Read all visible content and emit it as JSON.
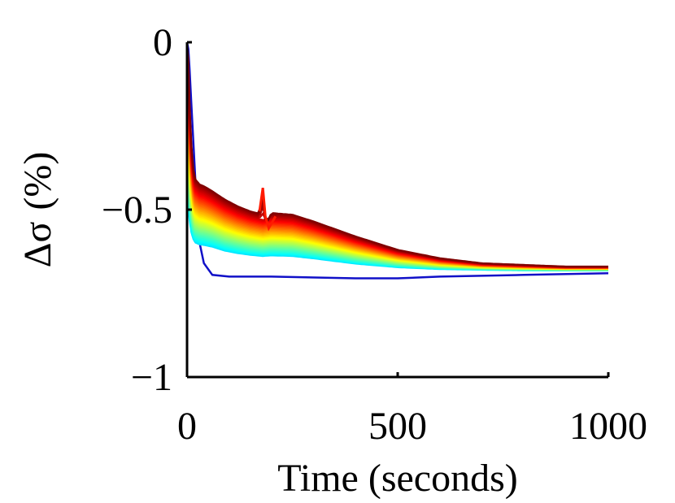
{
  "chart_data": {
    "type": "line",
    "xlabel": "Time (seconds)",
    "ylabel_symbol": "Δσ",
    "ylabel_unit": "(%)",
    "xlim": [
      0,
      1000
    ],
    "ylim": [
      -1,
      0
    ],
    "x_ticks": [
      {
        "value": 0,
        "label": "0"
      },
      {
        "value": 500,
        "label": "500"
      },
      {
        "value": 1000,
        "label": "1000"
      }
    ],
    "y_ticks": [
      {
        "value": 0,
        "label": "0"
      },
      {
        "value": -0.5,
        "label": "−0.5"
      },
      {
        "value": -1,
        "label": "−1"
      }
    ],
    "grid": false,
    "legend": "none",
    "colormap": "jet",
    "series_count": 40,
    "envelope": {
      "x": [
        0,
        3,
        6,
        10,
        15,
        20,
        30,
        40,
        60,
        90,
        120,
        150,
        180,
        200,
        250,
        300,
        400,
        500,
        600,
        700,
        800,
        900,
        1000
      ],
      "upper": [
        0,
        -0.05,
        -0.18,
        -0.3,
        -0.38,
        -0.41,
        -0.425,
        -0.43,
        -0.445,
        -0.47,
        -0.49,
        -0.505,
        -0.515,
        -0.51,
        -0.515,
        -0.535,
        -0.58,
        -0.62,
        -0.645,
        -0.66,
        -0.665,
        -0.67,
        -0.67
      ],
      "lower": [
        -0.76,
        -0.74,
        -0.72,
        -0.71,
        -0.7,
        -0.7,
        -0.7,
        -0.7,
        -0.7,
        -0.705,
        -0.705,
        -0.705,
        -0.705,
        -0.705,
        -0.705,
        -0.705,
        -0.705,
        -0.7,
        -0.695,
        -0.69,
        -0.69,
        -0.688,
        -0.688
      ]
    },
    "blue_curve": {
      "x": [
        0,
        3,
        6,
        10,
        15,
        20,
        25,
        30,
        40,
        60,
        100,
        200,
        400,
        500,
        600,
        800,
        1000
      ],
      "y": [
        0,
        -0.02,
        -0.08,
        -0.18,
        -0.3,
        -0.42,
        -0.52,
        -0.6,
        -0.66,
        -0.695,
        -0.7,
        -0.7,
        -0.705,
        -0.705,
        -0.7,
        -0.695,
        -0.69
      ]
    },
    "spike": {
      "x": 180,
      "peak": -0.435,
      "dip": -0.555
    }
  }
}
